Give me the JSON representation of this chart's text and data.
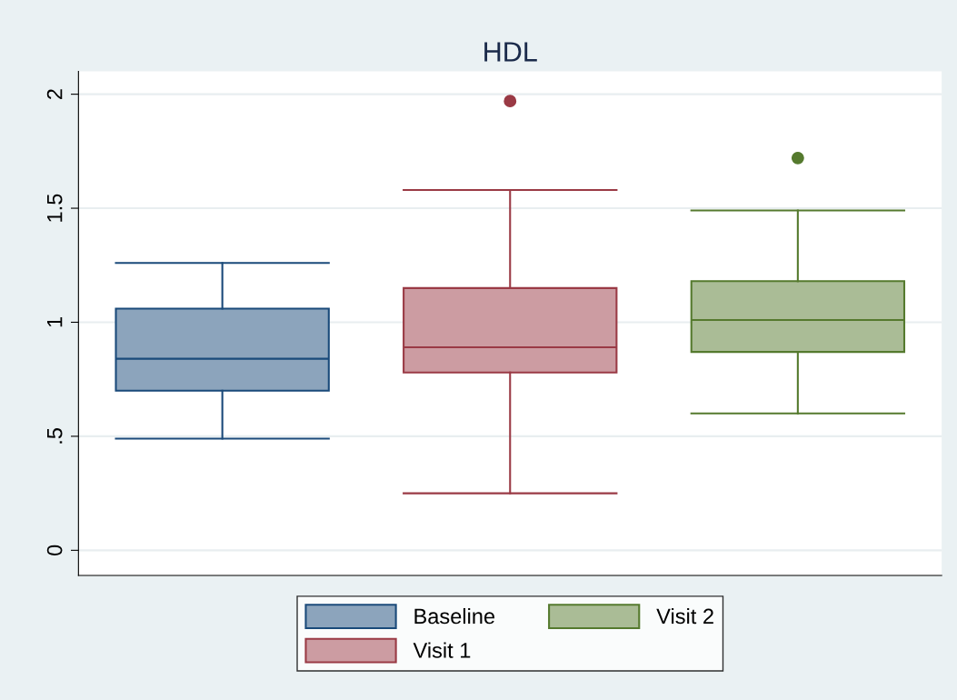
{
  "chart_data": {
    "type": "box",
    "title": "HDL",
    "categories": [
      null
    ],
    "series": [
      {
        "name": "Baseline",
        "color": "#1a4a7a",
        "boxes": [
          {
            "low": 0.49,
            "q1": 0.7,
            "median": 0.84,
            "q3": 1.06,
            "high": 1.26
          }
        ]
      },
      {
        "name": "Visit 1",
        "color": "#9a3a45",
        "boxes": [
          {
            "low": 0.25,
            "q1": 0.78,
            "median": 0.89,
            "q3": 1.15,
            "high": 1.58,
            "outliers": [
              1.97
            ]
          }
        ]
      },
      {
        "name": "Visit 2",
        "color": "#557a2e",
        "boxes": [
          {
            "low": 0.6,
            "q1": 0.87,
            "median": 1.01,
            "q3": 1.18,
            "high": 1.49,
            "outliers": [
              1.72
            ]
          }
        ]
      }
    ],
    "ylim": [
      -0.11,
      2.1
    ],
    "yticks": [
      0,
      {
        "value": 0.5,
        "label": ".5"
      },
      1,
      1.5,
      2
    ],
    "grid": "y",
    "legend": "bottom"
  }
}
